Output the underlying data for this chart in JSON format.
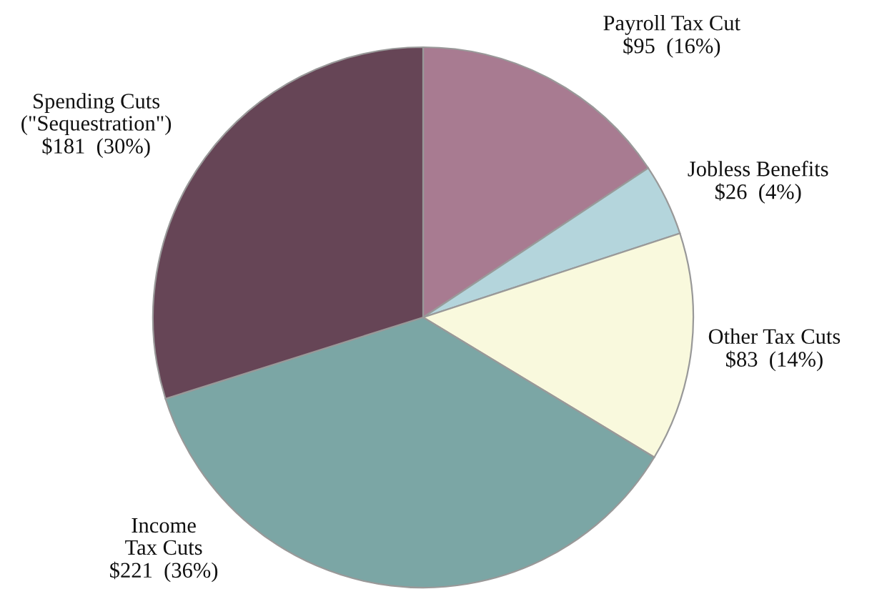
{
  "chart_data": {
    "type": "pie",
    "categories": [
      "Payroll Tax Cut",
      "Jobless Benefits",
      "Other Tax Cuts",
      "Income\nTax Cuts",
      "Spending Cuts\n(\"Sequestration\")"
    ],
    "values": [
      95,
      26,
      83,
      221,
      181
    ],
    "value_labels": [
      "$95  (16%)",
      "$26  (4%)",
      "$83  (14%)",
      "$221  (36%)",
      "$181  (30%)"
    ],
    "colors": [
      "#a87b91",
      "#b4d5dc",
      "#f9f9dd",
      "#7ba6a5",
      "#664556"
    ]
  }
}
